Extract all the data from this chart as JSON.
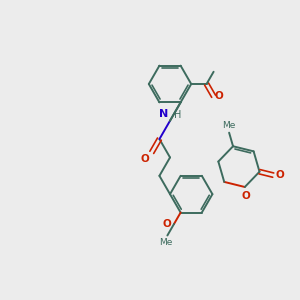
{
  "background_color": "#ececec",
  "bond_color": "#3d6b5e",
  "oxygen_color": "#cc2200",
  "nitrogen_color": "#2200cc",
  "carbon_color": "#3d6b5e",
  "figsize": [
    3.0,
    3.0
  ],
  "dpi": 100,
  "xlim": [
    0,
    10
  ],
  "ylim": [
    0,
    10
  ]
}
